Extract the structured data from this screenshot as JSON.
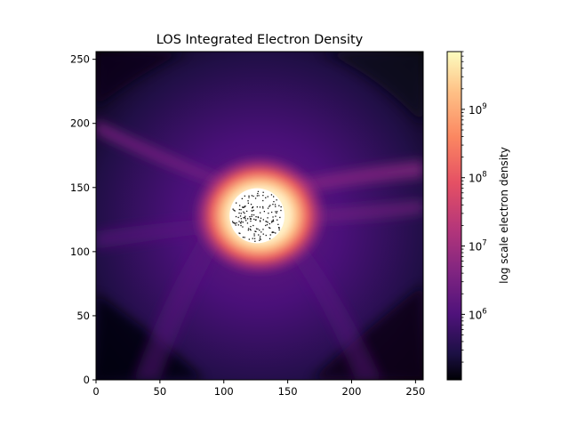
{
  "chart_data": {
    "type": "heatmap",
    "title": "LOS Integrated Electron Density",
    "xlabel": "",
    "ylabel": "",
    "xlim": [
      0,
      256
    ],
    "ylim": [
      0,
      256
    ],
    "x_ticks": [
      0,
      50,
      100,
      150,
      200,
      250
    ],
    "y_ticks": [
      0,
      50,
      100,
      150,
      200,
      250
    ],
    "colormap": "magma",
    "colorbar": {
      "label": "log scale electron density",
      "scale": "log",
      "range": [
        110000,
        7000000000
      ],
      "ticks": [
        {
          "value": 1000000,
          "base": "10",
          "exp": "6"
        },
        {
          "value": 10000000,
          "base": "10",
          "exp": "7"
        },
        {
          "value": 100000000,
          "base": "10",
          "exp": "8"
        },
        {
          "value": 1000000000,
          "base": "10",
          "exp": "9"
        }
      ]
    },
    "occulter": {
      "center_x": 126,
      "center_y": 128,
      "radius": 21.5,
      "color": "#ffffff"
    },
    "colors": {
      "magma_stops": [
        "#000004",
        "#1c1044",
        "#4f127b",
        "#812581",
        "#b5367a",
        "#e55064",
        "#fb8761",
        "#fec287",
        "#fcfdbf"
      ]
    }
  }
}
